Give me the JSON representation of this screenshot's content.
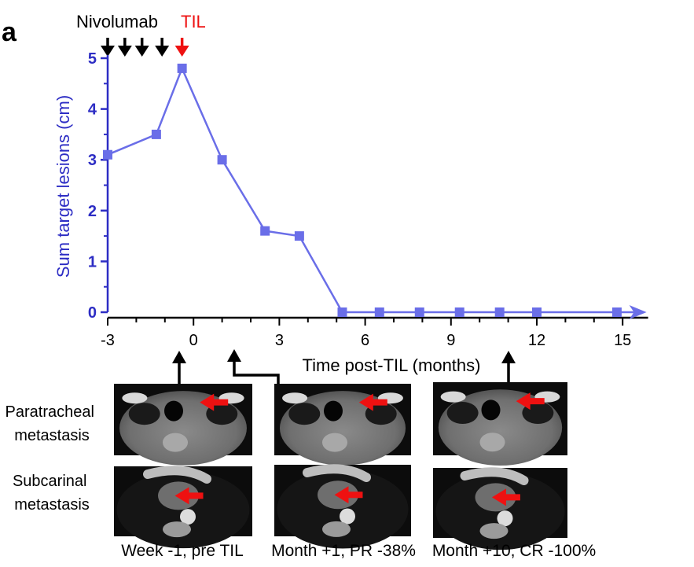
{
  "panel_letter": "a",
  "annotations": {
    "nivolumab": "Nivolumab",
    "til": "TIL"
  },
  "colors": {
    "series": "#6a6ee8",
    "axis_y": "#2d2dc4",
    "til_arrow": "#ee1111",
    "nivolumab_arrow": "#000000",
    "lesion_arrow": "#ee1111"
  },
  "chart_data": {
    "type": "line",
    "xlabel": "Time post-TIL (months)",
    "ylabel": "Sum target lesions (cm)",
    "xlim": [
      -3,
      16
    ],
    "ylim": [
      0,
      5
    ],
    "xticks": [
      -3,
      0,
      3,
      6,
      9,
      12,
      15
    ],
    "yticks": [
      0,
      1,
      2,
      3,
      4,
      5
    ],
    "series": [
      {
        "x": [
          -3,
          -1.3,
          -0.4,
          1,
          2.5,
          3.7,
          5.2,
          6.5,
          7.9,
          9.3,
          10.7,
          12,
          14.8
        ],
        "y": [
          3.1,
          3.5,
          4.8,
          3.0,
          1.6,
          1.5,
          0,
          0,
          0,
          0,
          0,
          0,
          0
        ]
      }
    ],
    "nivolumab_doses_x": [
      -3,
      -2.4,
      -1.8,
      -1.1
    ],
    "til_infusion_x": -0.4
  },
  "scans": {
    "row_labels": [
      "Paratracheal metastasis",
      "Subcarinal metastasis"
    ],
    "columns": [
      {
        "caption": "Week -1, pre TIL",
        "time_x": -0.4
      },
      {
        "caption": "Month +1, PR -38%",
        "time_x": 1.3
      },
      {
        "caption": "Month +10, CR -100%",
        "time_x": 10.7
      }
    ]
  }
}
